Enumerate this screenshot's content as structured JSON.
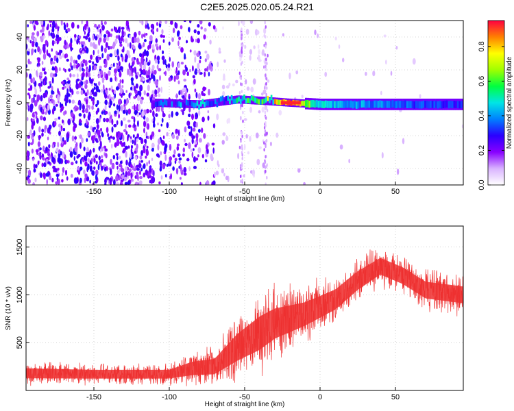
{
  "title": "C2E5.2025.020.05.24.R21",
  "chart_data": [
    {
      "type": "heatmap",
      "xlabel": "Height of straight line (km)",
      "ylabel": "Frequency (Hz)",
      "xlim": [
        -195,
        95
      ],
      "ylim": [
        -50,
        50
      ],
      "xticks": [
        -150,
        -100,
        -50,
        0,
        50
      ],
      "yticks": [
        -40,
        -20,
        0,
        20,
        40
      ],
      "colorbar": {
        "label": "Normalized spectral amplitude",
        "range": [
          0.0,
          0.95
        ],
        "ticks": [
          "0.0",
          "0.2",
          "0.4",
          "0.6",
          "0.8"
        ],
        "colors": [
          "#ffffff",
          "#d9b3ff",
          "#8800ff",
          "#2a00ff",
          "#0080ff",
          "#00e5e5",
          "#00ff40",
          "#a0ff00",
          "#ffff00",
          "#ff8000",
          "#ff0040"
        ]
      },
      "signal_line": {
        "description_points": [
          {
            "x": -110,
            "y": 0,
            "amp": 0.3
          },
          {
            "x": -80,
            "y": -1,
            "amp": 0.4
          },
          {
            "x": -55,
            "y": 2,
            "amp": 0.45
          },
          {
            "x": -35,
            "y": 1,
            "amp": 0.6
          },
          {
            "x": -20,
            "y": 0,
            "amp": 0.9
          },
          {
            "x": 0,
            "y": -1,
            "amp": 0.45
          },
          {
            "x": 50,
            "y": -1,
            "amp": 0.35
          },
          {
            "x": 92,
            "y": -1,
            "amp": 0.3
          }
        ]
      },
      "grid": true
    },
    {
      "type": "line",
      "xlabel": "Height of straight line (km)",
      "ylabel": "SNR (10 * v/v)",
      "xlim": [
        -195,
        95
      ],
      "ylim": [
        0,
        1720
      ],
      "xticks": [
        -150,
        -100,
        -50,
        0,
        50
      ],
      "yticks": [
        500,
        1000,
        1500
      ],
      "series": [
        {
          "color": "#ee3030",
          "envelope": [
            {
              "x": -195,
              "mean": 180,
              "spread": 150
            },
            {
              "x": -150,
              "mean": 170,
              "spread": 130
            },
            {
              "x": -100,
              "mean": 170,
              "spread": 130
            },
            {
              "x": -85,
              "mean": 230,
              "spread": 200
            },
            {
              "x": -70,
              "mean": 250,
              "spread": 230
            },
            {
              "x": -55,
              "mean": 450,
              "spread": 400
            },
            {
              "x": -40,
              "mean": 600,
              "spread": 500
            },
            {
              "x": -30,
              "mean": 700,
              "spread": 450
            },
            {
              "x": -10,
              "mean": 800,
              "spread": 350
            },
            {
              "x": 10,
              "mean": 950,
              "spread": 300
            },
            {
              "x": 25,
              "mean": 1150,
              "spread": 280
            },
            {
              "x": 40,
              "mean": 1300,
              "spread": 250
            },
            {
              "x": 55,
              "mean": 1200,
              "spread": 250
            },
            {
              "x": 70,
              "mean": 1050,
              "spread": 250
            },
            {
              "x": 95,
              "mean": 1000,
              "spread": 250
            }
          ]
        }
      ],
      "grid": true
    }
  ]
}
